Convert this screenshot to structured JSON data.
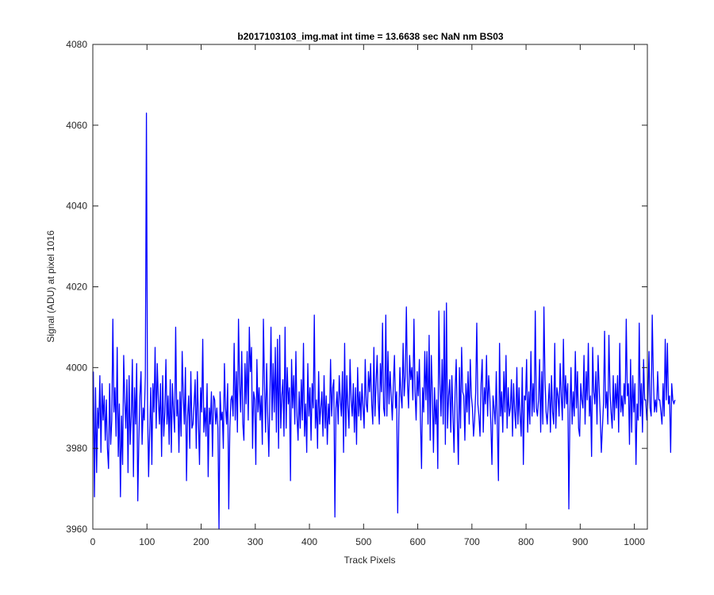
{
  "figure": {
    "background": "#ffffff",
    "axes_color": "#262626",
    "series_color": "#0000ff"
  },
  "chart_data": {
    "type": "line",
    "title": "b2017103103_img.mat int time = 13.6638 sec  NaN nm BS03",
    "xlabel": "Track Pixels",
    "ylabel": "Signal (ADU) at pixel 1016",
    "xlim": [
      0,
      1024
    ],
    "ylim": [
      3960,
      4080
    ],
    "xticks": [
      0,
      100,
      200,
      300,
      400,
      500,
      600,
      700,
      800,
      900,
      1000
    ],
    "yticks": [
      3960,
      3980,
      4000,
      4020,
      4040,
      4060,
      4080
    ],
    "grid": false,
    "box": true,
    "series": [
      {
        "x_start": 1,
        "x_step": 2,
        "values": [
          3999,
          3968,
          3995,
          3974,
          3990,
          3985,
          3998,
          3979,
          3996,
          3987,
          3993,
          3982,
          3992,
          3980,
          3975,
          3996,
          3981,
          3987,
          4012,
          3989,
          3995,
          3983,
          4005,
          3978,
          3991,
          3968,
          3988,
          3976,
          4003,
          3992,
          3985,
          3997,
          3974,
          3998,
          3981,
          3988,
          4002,
          3973,
          3995,
          3986,
          4001,
          3967,
          3982,
          3993,
          3999,
          3981,
          3990,
          3987,
          3998,
          4063,
          3991,
          3973,
          3984,
          3995,
          3976,
          3996,
          3989,
          4005,
          3985,
          4001,
          3992,
          3986,
          3996,
          3978,
          3998,
          3983,
          3989,
          4002,
          3986,
          3993,
          3981,
          3997,
          3979,
          3996,
          3989,
          3984,
          4010,
          3988,
          3992,
          3979,
          3994,
          3983,
          4004,
          3993,
          3986,
          4000,
          3972,
          3988,
          3993,
          3980,
          3999,
          3985,
          3986,
          3991,
          3997,
          3980,
          3999,
          3987,
          3976,
          3995,
          3989,
          4007,
          3984,
          3990,
          3983,
          3996,
          3973,
          3990,
          3986,
          3994,
          3978,
          3993,
          3992,
          3986,
          3990,
          3985,
          3960,
          3994,
          3987,
          3989,
          3980,
          4001,
          3990,
          3986,
          3996,
          3965,
          3985,
          3992,
          3993,
          3988,
          4006,
          3987,
          3999,
          3984,
          4012,
          3996,
          3989,
          4004,
          3986,
          3982,
          4001,
          3991,
          4004,
          3987,
          4010,
          3999,
          4005,
          3980,
          3994,
          3992,
          3976,
          4002,
          3989,
          3995,
          3987,
          3993,
          3981,
          4012,
          3996,
          3984,
          4001,
          3988,
          3978,
          3993,
          4010,
          3987,
          4001,
          3989,
          4005,
          3984,
          4007,
          3980,
          4008,
          3985,
          3993,
          3997,
          3983,
          4010,
          3985,
          4000,
          3991,
          3995,
          3972,
          4002,
          3990,
          3998,
          3986,
          4004,
          3988,
          3982,
          3994,
          3985,
          3997,
          3987,
          4006,
          3983,
          3991,
          3979,
          4001,
          3988,
          3995,
          3982,
          3996,
          3990,
          4013,
          3985,
          3992,
          3980,
          3999,
          3986,
          3990,
          3994,
          3983,
          3998,
          3985,
          3993,
          3981,
          3991,
          3986,
          4002,
          3988,
          3995,
          3997,
          3963,
          3990,
          3994,
          3986,
          3998,
          3992,
          3988,
          3999,
          3979,
          4006,
          3983,
          3998,
          3990,
          3985,
          4002,
          3992,
          3988,
          3996,
          3984,
          3995,
          3981,
          4000,
          3988,
          3994,
          3987,
          3996,
          3990,
          3985,
          4002,
          3991,
          3989,
          3999,
          3994,
          4001,
          3991,
          3986,
          4005,
          3988,
          3996,
          4003,
          3992,
          3986,
          4001,
          3994,
          4011,
          3990,
          3988,
          4013,
          3988,
          4004,
          3991,
          3999,
          3993,
          3987,
          3996,
          4003,
          3990,
          3994,
          3964,
          3987,
          4000,
          3993,
          3990,
          4006,
          3993,
          3998,
          4015,
          3996,
          3990,
          4003,
          3997,
          4000,
          3992,
          4012,
          3994,
          3987,
          3999,
          3993,
          4002,
          3987,
          3975,
          3995,
          3989,
          4004,
          3992,
          4004,
          3986,
          4008,
          3982,
          4003,
          3994,
          3979,
          3995,
          3986,
          3992,
          3975,
          4014,
          3996,
          3988,
          4002,
          3986,
          4014,
          3981,
          4016,
          3985,
          3993,
          3997,
          3984,
          3998,
          3988,
          3979,
          3994,
          4002,
          3987,
          3976,
          4000,
          3985,
          4005,
          3994,
          3993,
          3982,
          3996,
          3989,
          3999,
          3986,
          4002,
          3993,
          3990,
          3983,
          3987,
          3994,
          4011,
          3991,
          3988,
          3983,
          3996,
          4002,
          3984,
          3995,
          3991,
          4003,
          3988,
          3998,
          3993,
          3986,
          3976,
          3993,
          3990,
          3986,
          3999,
          3985,
          3972,
          4006,
          3988,
          3994,
          3984,
          3999,
          3989,
          4003,
          3985,
          3995,
          3988,
          3990,
          3997,
          3983,
          3996,
          3989,
          3985,
          4000,
          3986,
          3995,
          3988,
          3983,
          4000,
          3976,
          3993,
          3992,
          4002,
          3984,
          3994,
          3986,
          4004,
          3988,
          3996,
          3989,
          4014,
          3990,
          3988,
          3992,
          4002,
          3984,
          3999,
          3986,
          4015,
          3997,
          3989,
          3986,
          3991,
          3996,
          3984,
          3998,
          3989,
          3986,
          4006,
          3985,
          3995,
          3993,
          3988,
          4001,
          3993,
          3987,
          4007,
          3990,
          3998,
          3991,
          3996,
          3965,
          3989,
          4000,
          3986,
          3994,
          3988,
          4004,
          3990,
          3999,
          3985,
          3983,
          3996,
          3992,
          3990,
          4003,
          3986,
          3999,
          3992,
          4006,
          3988,
          3993,
          3978,
          4005,
          3994,
          3991,
          3999,
          3986,
          4003,
          3995,
          3988,
          3979,
          3985,
          3991,
          4009,
          3990,
          3994,
          3986,
          4008,
          3994,
          3989,
          3985,
          3998,
          3987,
          3996,
          3990,
          3998,
          3984,
          4006,
          3989,
          3993,
          3988,
          3996,
          3991,
          4012,
          3993,
          3996,
          3981,
          4002,
          3984,
          3998,
          3989,
          3996,
          3976,
          3991,
          3987,
          4011,
          3988,
          3996,
          3984,
          4002,
          3992,
          3992,
          3987,
          3992,
          4004,
          3990,
          3988,
          4013,
          3998,
          3989,
          3992,
          3989,
          3999,
          3992,
          3992,
          3989,
          3986,
          3996,
          3988,
          4007,
          3992,
          4006,
          3991,
          3993,
          3979,
          3996,
          3992,
          3991,
          3992
        ]
      }
    ]
  }
}
